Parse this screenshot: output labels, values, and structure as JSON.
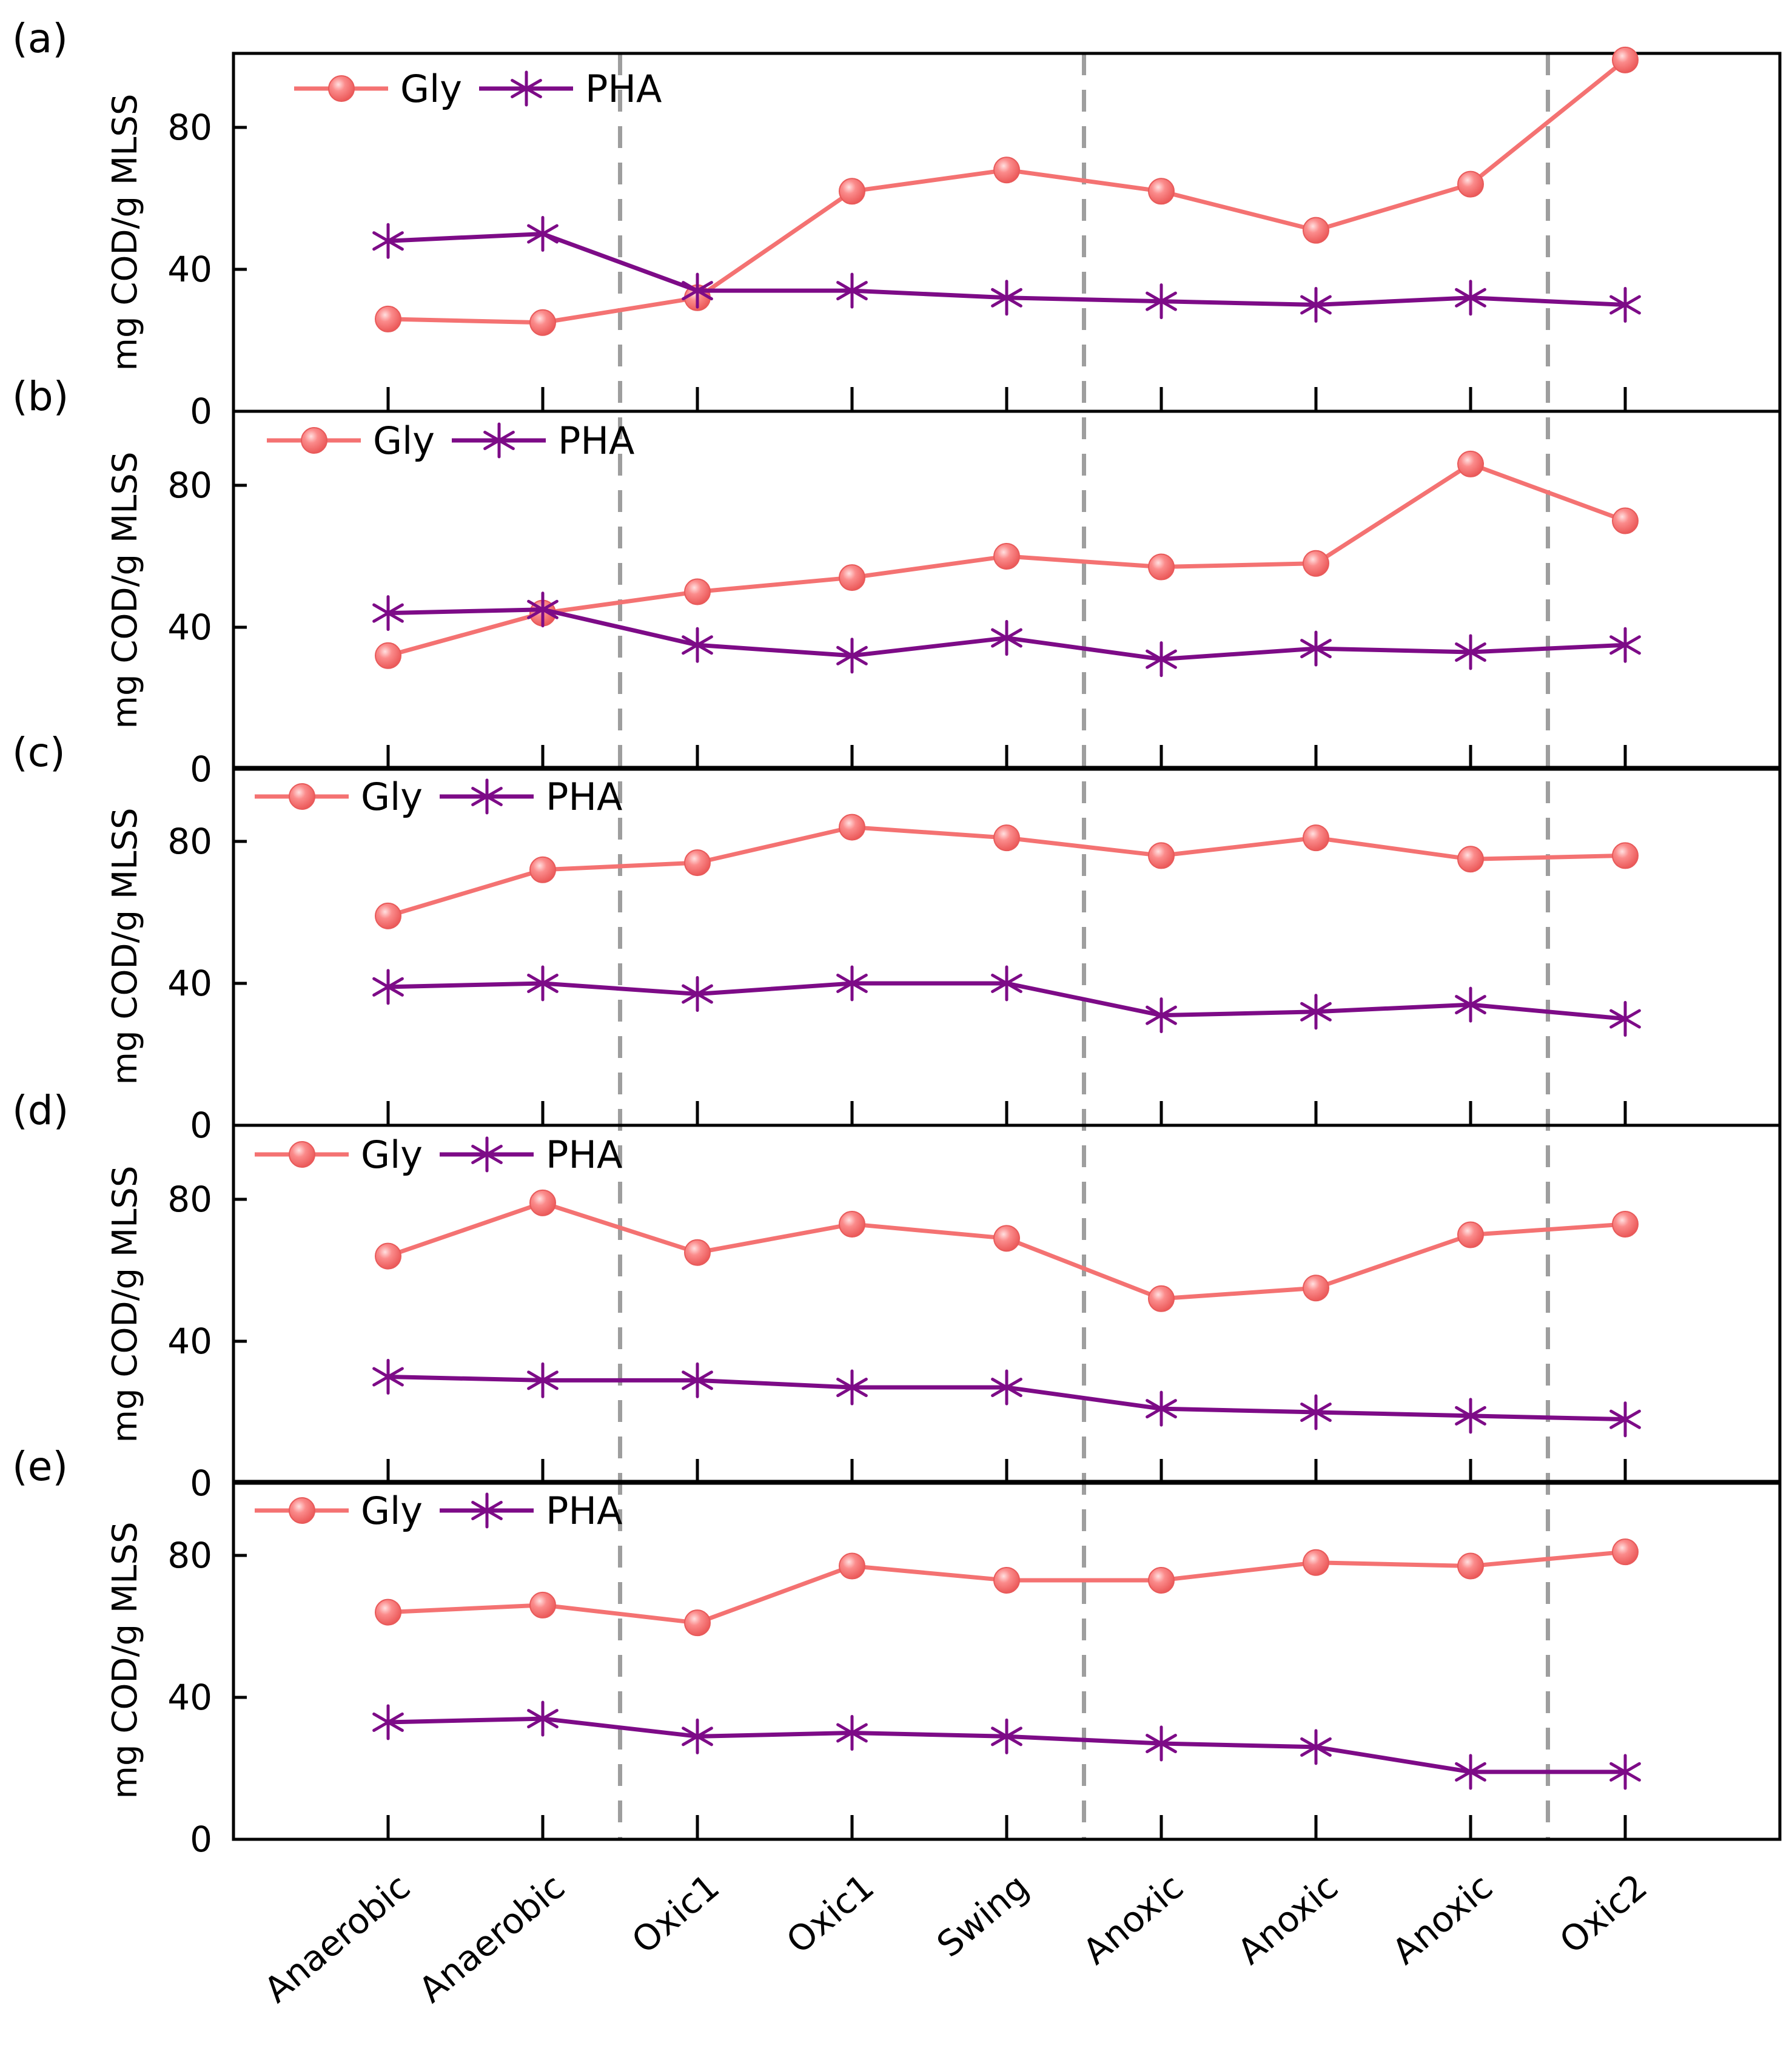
{
  "chart_data": {
    "type": "line",
    "x_categories": [
      "Anaerobic",
      "Anaerobic",
      "Oxic1",
      "Oxic1",
      "Swing",
      "Anoxic",
      "Anoxic",
      "Anoxic",
      "Oxic2"
    ],
    "ylabel": "mg COD/g MLSS",
    "ylim": [
      0,
      100
    ],
    "yticks": [
      0,
      40,
      80
    ],
    "phase_separators_after_category_index": [
      1,
      4,
      7
    ],
    "series_colors": {
      "Gly": "#f47272",
      "PHA": "#7d0b87"
    },
    "separator_color": "#9e9e9e",
    "panels": [
      {
        "label": "(a)",
        "legend": [
          "Gly",
          "PHA"
        ],
        "series": [
          {
            "name": "Gly",
            "marker": "sphere",
            "values": [
              26,
              25,
              32,
              62,
              68,
              62,
              51,
              64,
              99
            ]
          },
          {
            "name": "PHA",
            "marker": "asterisk",
            "values": [
              48,
              50,
              34,
              34,
              32,
              31,
              30,
              32,
              30
            ]
          }
        ]
      },
      {
        "label": "(b)",
        "legend": [
          "Gly",
          "PHA"
        ],
        "series": [
          {
            "name": "Gly",
            "marker": "sphere",
            "values": [
              32,
              44,
              50,
              54,
              60,
              57,
              58,
              86,
              70
            ]
          },
          {
            "name": "PHA",
            "marker": "asterisk",
            "values": [
              44,
              45,
              35,
              32,
              37,
              31,
              34,
              33,
              35
            ]
          }
        ]
      },
      {
        "label": "(c)",
        "legend": [
          "Gly",
          "PHA"
        ],
        "series": [
          {
            "name": "Gly",
            "marker": "sphere",
            "values": [
              59,
              72,
              74,
              84,
              81,
              76,
              81,
              75,
              76
            ]
          },
          {
            "name": "PHA",
            "marker": "asterisk",
            "values": [
              39,
              40,
              37,
              40,
              40,
              31,
              32,
              34,
              30
            ]
          }
        ]
      },
      {
        "label": "(d)",
        "legend": [
          "Gly",
          "PHA"
        ],
        "series": [
          {
            "name": "Gly",
            "marker": "sphere",
            "values": [
              64,
              79,
              65,
              73,
              69,
              52,
              55,
              70,
              73
            ]
          },
          {
            "name": "PHA",
            "marker": "asterisk",
            "values": [
              30,
              29,
              29,
              27,
              27,
              21,
              20,
              19,
              18
            ]
          }
        ]
      },
      {
        "label": "(e)",
        "legend": [
          "Gly",
          "PHA"
        ],
        "series": [
          {
            "name": "Gly",
            "marker": "sphere",
            "values": [
              64,
              66,
              61,
              77,
              73,
              73,
              78,
              77,
              81
            ]
          },
          {
            "name": "PHA",
            "marker": "asterisk",
            "values": [
              33,
              34,
              29,
              30,
              29,
              27,
              26,
              19,
              19
            ]
          }
        ]
      }
    ]
  }
}
